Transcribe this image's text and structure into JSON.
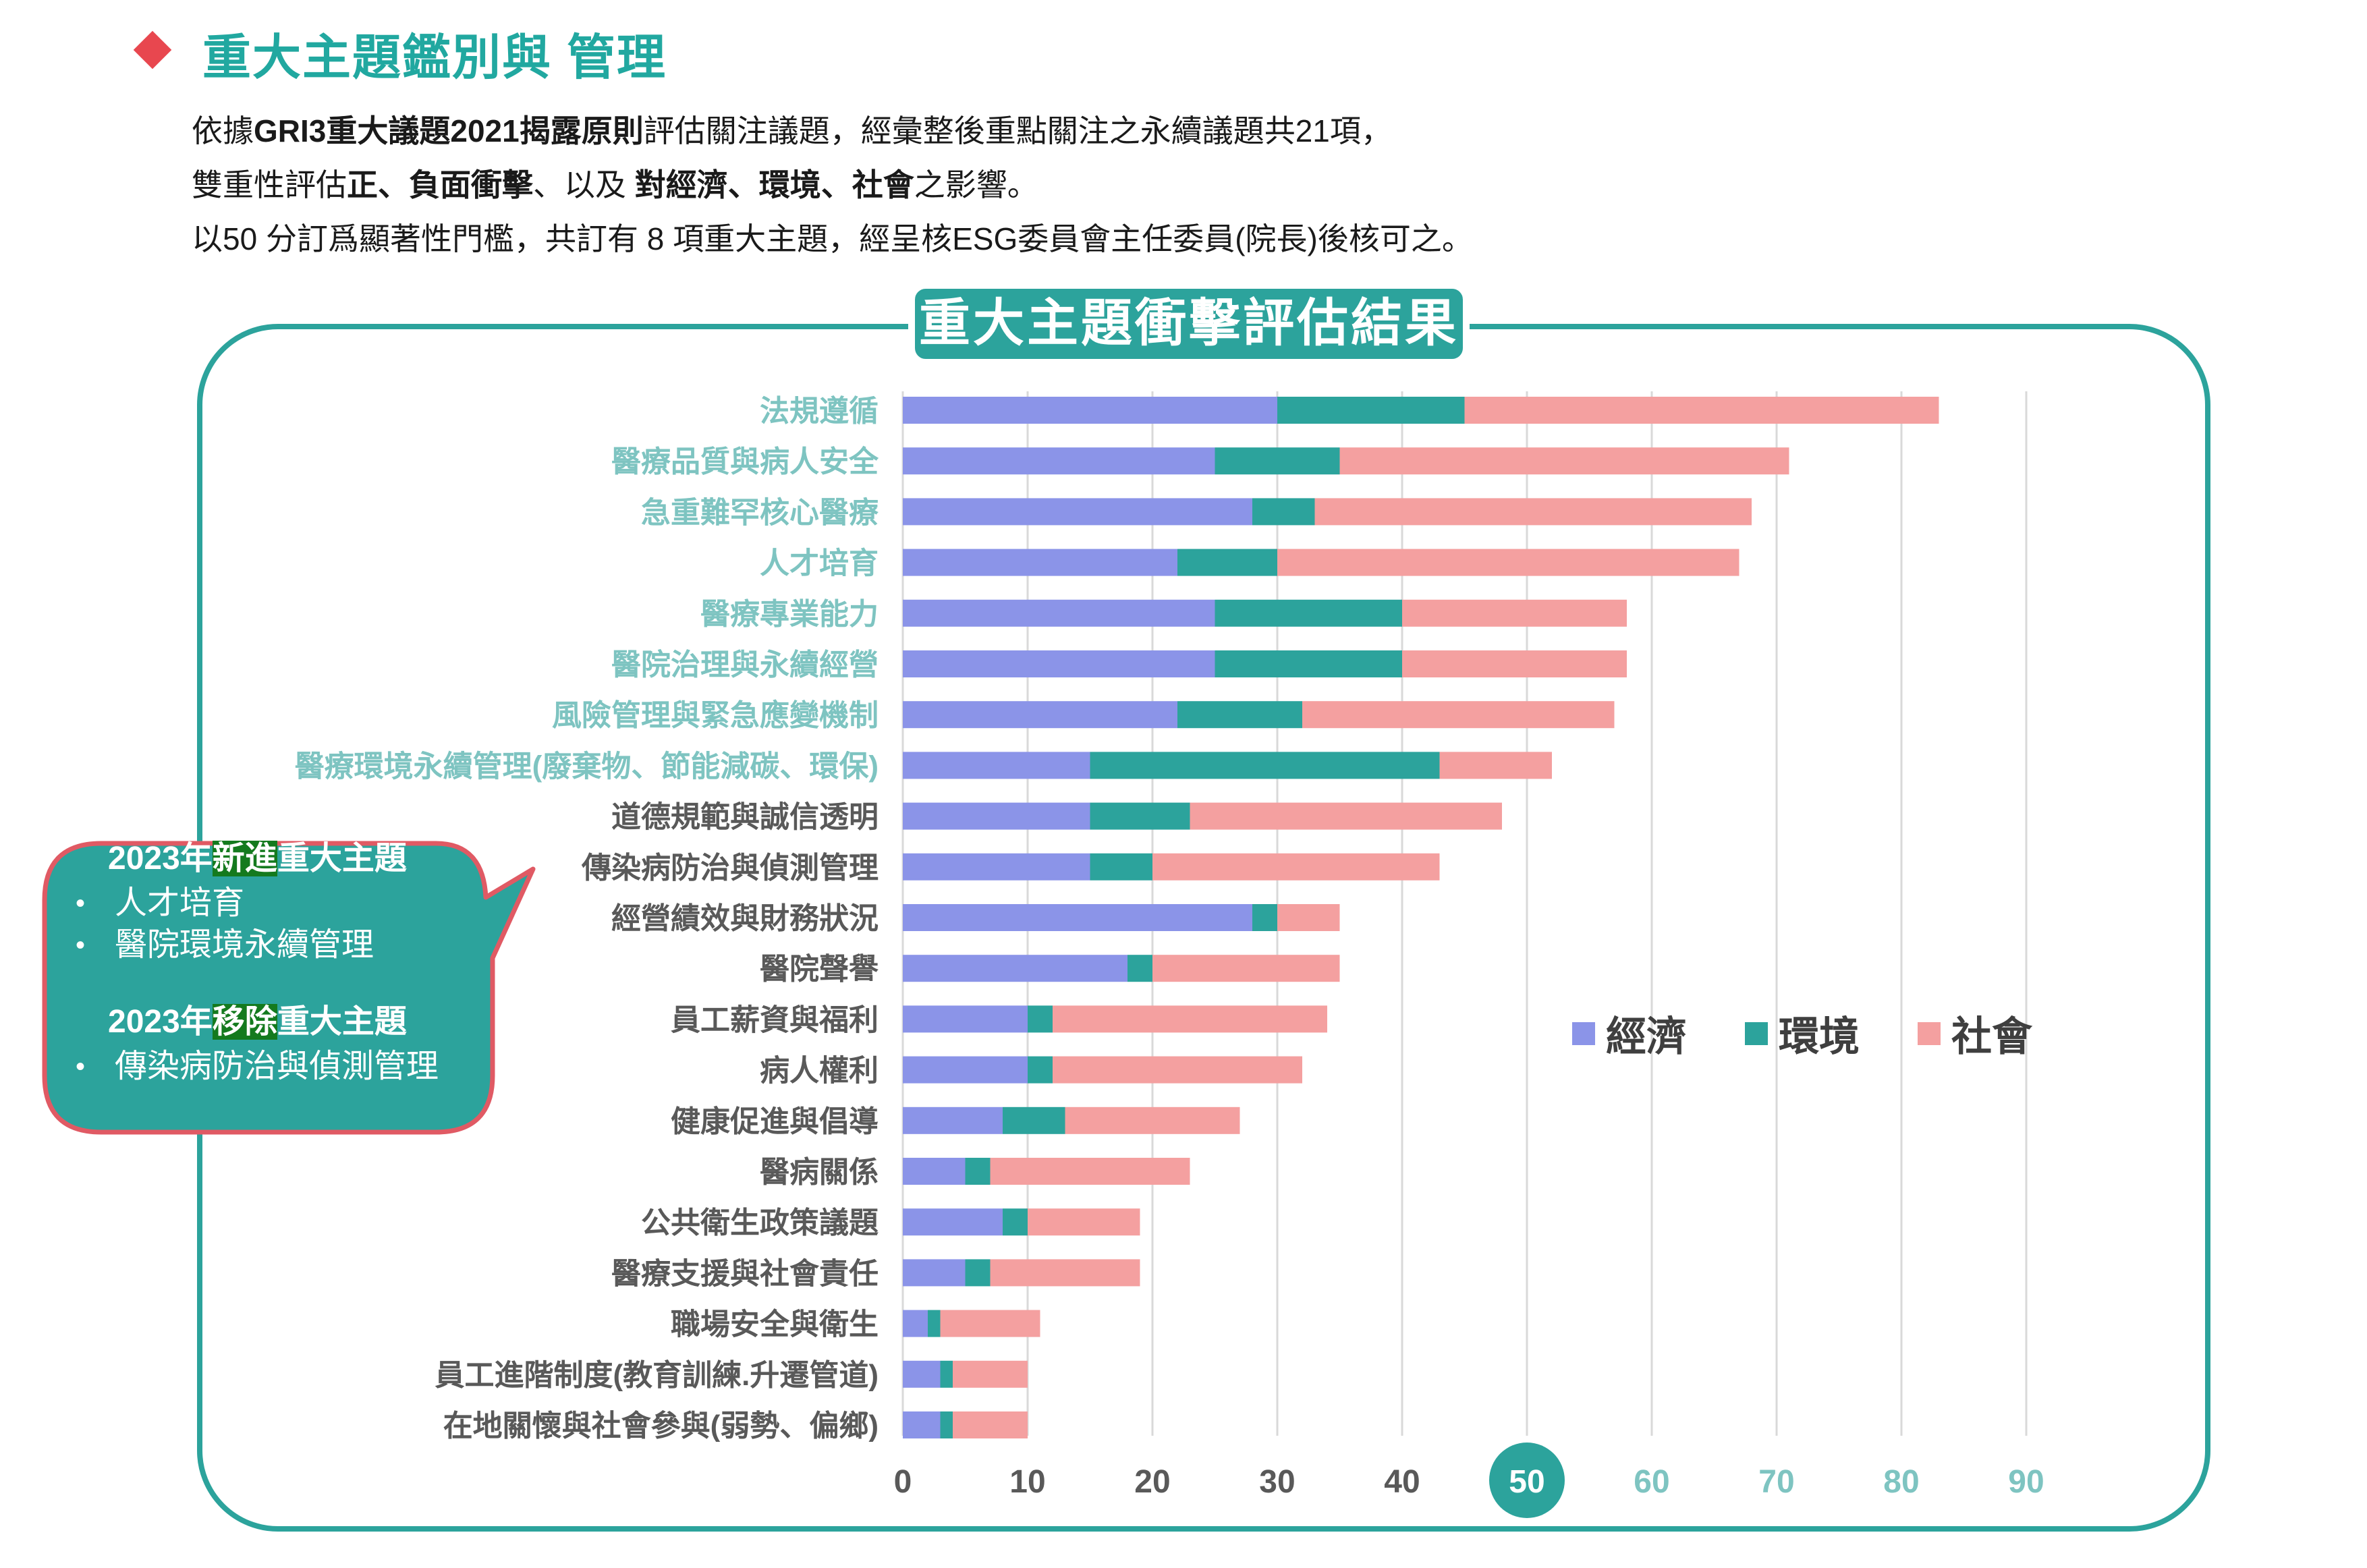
{
  "page": {
    "title": "重大主題鑑別與 管理",
    "para_lines": [
      [
        {
          "text": "依據",
          "bold": false
        },
        {
          "text": "GRI3重大議題2021揭露原則",
          "bold": true
        },
        {
          "text": "評估關注議題，經彙整後重點關注之永續議題共21項，",
          "bold": false
        }
      ],
      [
        {
          "text": "雙重性評估",
          "bold": false
        },
        {
          "text": "正、負面衝擊",
          "bold": true
        },
        {
          "text": "、以及 ",
          "bold": false
        },
        {
          "text": "對經濟、環境、社會",
          "bold": true
        },
        {
          "text": "之影響。",
          "bold": false
        }
      ],
      [
        {
          "text": " 以50 分訂爲顯著性門檻，共訂有 8 項重大主題，經呈核ESG委員會主任委員(院長)後核可之。",
          "bold": false
        }
      ]
    ]
  },
  "colors": {
    "economy": "#8b94e8",
    "environment": "#2ca39c",
    "society": "#f4a0a0",
    "accent": "#2ca39c",
    "highlight_label": "#7ec4c1",
    "normal_label": "#595959",
    "callout_border": "#e05a64",
    "callout_fill": "#2ca39c",
    "diamond": "#e8474f"
  },
  "chart_data": {
    "type": "bar",
    "orientation": "horizontal",
    "stacked": true,
    "title": "重大主題衝擊評估結果",
    "categories": [
      "法規遵循",
      "醫療品質與病人安全",
      "急重難罕核心醫療",
      "人才培育",
      "醫療專業能力",
      "醫院治理與永續經營",
      "風險管理與緊急應變機制",
      "醫療環境永續管理(廢棄物、節能減碳、環保)",
      "道德規範與誠信透明",
      "傳染病防治與偵測管理",
      "經營績效與財務狀況",
      "醫院聲譽",
      "員工薪資與福利",
      "病人權利",
      "健康促進與倡導",
      "醫病關係",
      "公共衛生政策議題",
      "醫療支援與社會責任",
      "職場安全與衛生",
      "員工進階制度(教育訓練.升遷管道)",
      "在地關懷與社會參與(弱勢、偏鄉)"
    ],
    "highlighted_count": 8,
    "series": [
      {
        "name": "經濟",
        "values": [
          30,
          25,
          28,
          22,
          25,
          25,
          22,
          15,
          15,
          15,
          28,
          18,
          10,
          10,
          8,
          5,
          8,
          5,
          2,
          3,
          3
        ]
      },
      {
        "name": "環境",
        "values": [
          15,
          10,
          5,
          8,
          15,
          15,
          10,
          28,
          8,
          5,
          2,
          2,
          2,
          2,
          5,
          2,
          2,
          2,
          1,
          1,
          1
        ]
      },
      {
        "name": "社會",
        "values": [
          38,
          36,
          35,
          37,
          18,
          18,
          25,
          9,
          25,
          23,
          5,
          15,
          22,
          20,
          14,
          16,
          9,
          12,
          8,
          6,
          6
        ]
      }
    ],
    "xlim": [
      0,
      90
    ],
    "x_ticks": [
      "0",
      "10",
      "20",
      "30",
      "40",
      "50",
      "60",
      "70",
      "80",
      "90"
    ],
    "threshold_tick": "50",
    "grid": true,
    "legend_position": "right-middle"
  },
  "callout": {
    "added_heading": {
      "pre": "2023年",
      "hl": "新進",
      "post": "重大主題"
    },
    "added_items": [
      "人才培育",
      "醫院環境永續管理"
    ],
    "removed_heading": {
      "pre": "2023年",
      "hl": "移除",
      "post": "重大主題"
    },
    "removed_items": [
      "傳染病防治與偵測管理"
    ]
  }
}
